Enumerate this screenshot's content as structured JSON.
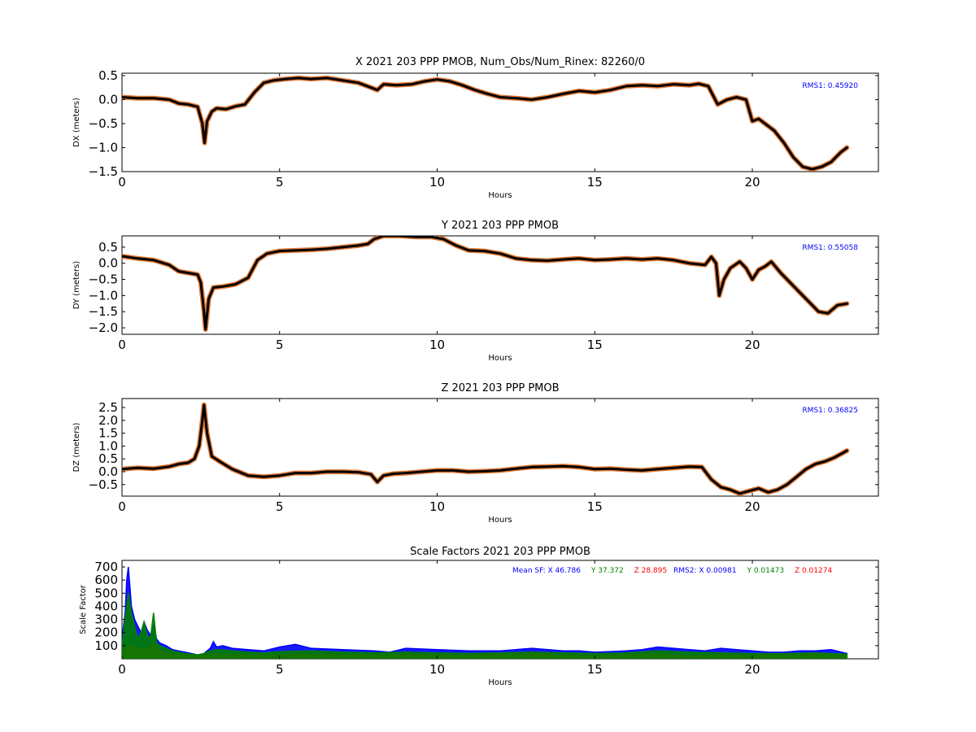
{
  "chart_data": [
    {
      "type": "line",
      "title": "X 2021 203 PPP  PMOB, Num_Obs/Num_Rinex: 82260/0",
      "xlabel": "Hours",
      "ylabel": "DX (meters)",
      "xlim": [
        0,
        24
      ],
      "ylim": [
        -1.5,
        0.55
      ],
      "xticks": [
        "0",
        "5",
        "10",
        "15",
        "20"
      ],
      "yticks": [
        "0.5",
        "0.0",
        "−0.5",
        "−1.0",
        "−1.5"
      ],
      "annotation": "RMS1:  0.45920",
      "grid": false,
      "series": [
        {
          "color": "#000000",
          "x": [
            0,
            0.5,
            1.0,
            1.5,
            1.8,
            2.1,
            2.4,
            2.55,
            2.62,
            2.7,
            2.85,
            3.0,
            3.3,
            3.6,
            3.9,
            4.2,
            4.5,
            4.8,
            5.2,
            5.6,
            6.0,
            6.5,
            7.0,
            7.5,
            7.9,
            8.1,
            8.3,
            8.7,
            9.2,
            9.6,
            10.0,
            10.4,
            10.8,
            11.2,
            11.6,
            12.0,
            12.5,
            13.0,
            13.5,
            14.0,
            14.5,
            15.0,
            15.5,
            16.0,
            16.5,
            17.0,
            17.5,
            18.0,
            18.3,
            18.6,
            18.9,
            19.2,
            19.5,
            19.8,
            20.0,
            20.2,
            20.5,
            20.7,
            21.0,
            21.3,
            21.6,
            21.9,
            22.2,
            22.5,
            22.8,
            23.0
          ],
          "y": [
            0.05,
            0.03,
            0.03,
            0.0,
            -0.08,
            -0.1,
            -0.15,
            -0.5,
            -0.9,
            -0.45,
            -0.25,
            -0.18,
            -0.2,
            -0.14,
            -0.1,
            0.15,
            0.35,
            0.4,
            0.43,
            0.45,
            0.43,
            0.45,
            0.4,
            0.35,
            0.25,
            0.2,
            0.32,
            0.3,
            0.32,
            0.38,
            0.42,
            0.38,
            0.3,
            0.2,
            0.12,
            0.05,
            0.03,
            0.0,
            0.05,
            0.12,
            0.18,
            0.15,
            0.2,
            0.28,
            0.3,
            0.28,
            0.32,
            0.3,
            0.33,
            0.28,
            -0.1,
            0.0,
            0.05,
            0.0,
            -0.45,
            -0.4,
            -0.55,
            -0.65,
            -0.9,
            -1.2,
            -1.4,
            -1.45,
            -1.4,
            -1.3,
            -1.1,
            -1.0
          ]
        }
      ]
    },
    {
      "type": "line",
      "title": "Y 2021 203 PPP  PMOB",
      "xlabel": "Hours",
      "ylabel": "DY (meters)",
      "xlim": [
        0,
        24
      ],
      "ylim": [
        -2.2,
        0.85
      ],
      "xticks": [
        "0",
        "5",
        "10",
        "15",
        "20"
      ],
      "yticks": [
        "0.5",
        "0.0",
        "−0.5",
        "−1.0",
        "−1.5",
        "−2.0"
      ],
      "annotation": "RMS1:  0.55058",
      "grid": false,
      "series": [
        {
          "color": "#000000",
          "x": [
            0,
            0.5,
            1.0,
            1.5,
            1.8,
            2.1,
            2.4,
            2.5,
            2.6,
            2.65,
            2.75,
            2.9,
            3.2,
            3.6,
            4.0,
            4.3,
            4.6,
            5.0,
            5.5,
            6.0,
            6.5,
            7.0,
            7.5,
            7.8,
            8.0,
            8.3,
            8.8,
            9.3,
            9.8,
            10.2,
            10.6,
            11.0,
            11.5,
            12.0,
            12.5,
            13.0,
            13.5,
            14.0,
            14.5,
            15.0,
            15.5,
            16.0,
            16.5,
            17.0,
            17.5,
            18.0,
            18.5,
            18.7,
            18.85,
            18.95,
            19.1,
            19.3,
            19.6,
            19.8,
            20.0,
            20.2,
            20.4,
            20.6,
            20.9,
            21.2,
            21.5,
            21.8,
            22.1,
            22.4,
            22.7,
            23.0
          ],
          "y": [
            0.22,
            0.15,
            0.1,
            -0.05,
            -0.25,
            -0.3,
            -0.35,
            -0.6,
            -1.5,
            -2.05,
            -1.1,
            -0.75,
            -0.72,
            -0.65,
            -0.45,
            0.1,
            0.3,
            0.38,
            0.4,
            0.42,
            0.45,
            0.5,
            0.55,
            0.6,
            0.75,
            0.85,
            0.85,
            0.82,
            0.82,
            0.75,
            0.55,
            0.4,
            0.38,
            0.3,
            0.15,
            0.1,
            0.08,
            0.12,
            0.15,
            0.1,
            0.12,
            0.15,
            0.12,
            0.15,
            0.1,
            0.0,
            -0.05,
            0.2,
            0.0,
            -1.0,
            -0.5,
            -0.15,
            0.05,
            -0.15,
            -0.5,
            -0.2,
            -0.1,
            0.05,
            -0.3,
            -0.6,
            -0.9,
            -1.2,
            -1.5,
            -1.55,
            -1.3,
            -1.25
          ]
        }
      ]
    },
    {
      "type": "line",
      "title": "Z 2021 203 PPP  PMOB",
      "xlabel": "Hours",
      "ylabel": "DZ (meters)",
      "xlim": [
        0,
        24
      ],
      "ylim": [
        -0.95,
        2.85
      ],
      "xticks": [
        "0",
        "5",
        "10",
        "15",
        "20"
      ],
      "yticks": [
        "2.5",
        "2.0",
        "1.5",
        "1.0",
        "0.5",
        "0.0",
        "−0.5"
      ],
      "annotation": "RMS1:  0.36825",
      "grid": false,
      "series": [
        {
          "color": "#000000",
          "x": [
            0,
            0.5,
            1.0,
            1.5,
            1.8,
            2.1,
            2.3,
            2.45,
            2.55,
            2.6,
            2.7,
            2.85,
            3.1,
            3.5,
            4.0,
            4.5,
            5.0,
            5.5,
            6.0,
            6.5,
            7.0,
            7.5,
            7.9,
            8.1,
            8.3,
            8.6,
            9.0,
            9.5,
            10.0,
            10.5,
            11.0,
            11.5,
            12.0,
            12.5,
            13.0,
            13.5,
            14.0,
            14.5,
            15.0,
            15.5,
            16.0,
            16.5,
            17.0,
            17.5,
            18.0,
            18.4,
            18.7,
            19.0,
            19.3,
            19.6,
            19.9,
            20.2,
            20.5,
            20.8,
            21.1,
            21.4,
            21.7,
            22.0,
            22.3,
            22.6,
            22.9,
            23.0
          ],
          "y": [
            0.1,
            0.15,
            0.12,
            0.2,
            0.3,
            0.35,
            0.5,
            1.0,
            2.0,
            2.6,
            1.5,
            0.6,
            0.4,
            0.1,
            -0.15,
            -0.2,
            -0.15,
            -0.05,
            -0.05,
            0.0,
            0.0,
            -0.02,
            -0.1,
            -0.4,
            -0.15,
            -0.08,
            -0.05,
            0.0,
            0.05,
            0.05,
            0.0,
            0.02,
            0.05,
            0.12,
            0.18,
            0.2,
            0.22,
            0.18,
            0.1,
            0.12,
            0.08,
            0.05,
            0.1,
            0.15,
            0.2,
            0.18,
            -0.3,
            -0.6,
            -0.7,
            -0.85,
            -0.75,
            -0.65,
            -0.8,
            -0.7,
            -0.5,
            -0.2,
            0.1,
            0.3,
            0.4,
            0.55,
            0.75,
            0.82
          ]
        }
      ]
    },
    {
      "type": "line",
      "title": "Scale Factors 2021 203 PPP  PMOB",
      "xlabel": "Hours",
      "ylabel": "Scale Factor",
      "xlim": [
        0,
        24
      ],
      "ylim": [
        0,
        750
      ],
      "xticks": [
        "0",
        "5",
        "10",
        "15",
        "20"
      ],
      "yticks": [
        "700",
        "600",
        "500",
        "400",
        "300",
        "200",
        "100"
      ],
      "grid": false,
      "legend_text": {
        "prefix": "Mean SF: X  46.786",
        "y_mean": "Y  37.372",
        "z_mean": "Z  28.895",
        "rms2_x": "RMS2: X  0.00981",
        "rms2_y": "Y  0.01473",
        "rms2_z": "Z  0.01274"
      },
      "series": [
        {
          "name": "X",
          "color": "#0000ff",
          "x": [
            0,
            0.1,
            0.15,
            0.2,
            0.25,
            0.3,
            0.4,
            0.5,
            0.6,
            0.7,
            0.8,
            0.9,
            1.0,
            1.1,
            1.2,
            1.4,
            1.6,
            1.8,
            2.0,
            2.2,
            2.4,
            2.6,
            2.8,
            2.9,
            3.0,
            3.2,
            3.5,
            4.0,
            4.5,
            5.0,
            5.5,
            6.0,
            7.0,
            8.0,
            8.5,
            9.0,
            10.0,
            11.0,
            12.0,
            12.5,
            13.0,
            14.0,
            14.5,
            15.0,
            16.0,
            16.5,
            17.0,
            17.5,
            18.0,
            18.5,
            19.0,
            19.5,
            20.0,
            20.5,
            21.0,
            21.5,
            22.0,
            22.5,
            23.0
          ],
          "y": [
            150,
            350,
            600,
            700,
            550,
            400,
            300,
            250,
            200,
            280,
            220,
            180,
            260,
            150,
            120,
            100,
            70,
            60,
            50,
            40,
            30,
            40,
            80,
            130,
            90,
            100,
            80,
            70,
            60,
            90,
            110,
            80,
            70,
            60,
            50,
            80,
            70,
            60,
            60,
            70,
            80,
            60,
            60,
            50,
            60,
            70,
            90,
            80,
            70,
            60,
            80,
            70,
            60,
            50,
            50,
            60,
            60,
            70,
            40
          ]
        },
        {
          "name": "Y",
          "color": "#008000",
          "x": [
            0,
            0.1,
            0.2,
            0.3,
            0.4,
            0.5,
            0.6,
            0.7,
            0.8,
            0.9,
            1.0,
            1.1,
            1.2,
            1.4,
            1.6,
            1.8,
            2.0,
            2.2,
            2.4,
            2.6,
            2.8,
            3.0,
            3.5,
            4.0,
            4.5,
            5.0,
            6.0,
            7.0,
            8.0,
            9.0,
            10.0,
            11.0,
            12.0,
            13.0,
            14.0,
            15.0,
            16.0,
            17.0,
            18.0,
            19.0,
            20.0,
            21.0,
            22.0,
            23.0
          ],
          "y": [
            100,
            300,
            500,
            350,
            250,
            150,
            200,
            280,
            180,
            150,
            350,
            120,
            100,
            80,
            60,
            50,
            40,
            35,
            30,
            40,
            60,
            70,
            60,
            50,
            45,
            55,
            60,
            50,
            45,
            50,
            45,
            40,
            45,
            50,
            45,
            40,
            45,
            60,
            50,
            45,
            40,
            40,
            45,
            35
          ]
        },
        {
          "name": "Z",
          "color": "#ff0000",
          "x": [
            0,
            0.2,
            0.4,
            0.6,
            0.8,
            1.0,
            1.2,
            1.5,
            2.0,
            2.5,
            3.0,
            4.0,
            5.0,
            6.0,
            7.0,
            8.0,
            9.0,
            10.0,
            11.0,
            12.0,
            13.0,
            14.0,
            15.0,
            16.0,
            17.0,
            18.0,
            19.0,
            20.0,
            21.0,
            22.0,
            23.0
          ],
          "y": [
            60,
            100,
            90,
            70,
            80,
            120,
            70,
            40,
            30,
            25,
            35,
            30,
            30,
            35,
            30,
            30,
            35,
            30,
            30,
            35,
            40,
            30,
            25,
            30,
            35,
            20,
            30,
            25,
            30,
            35,
            25
          ]
        }
      ]
    }
  ]
}
